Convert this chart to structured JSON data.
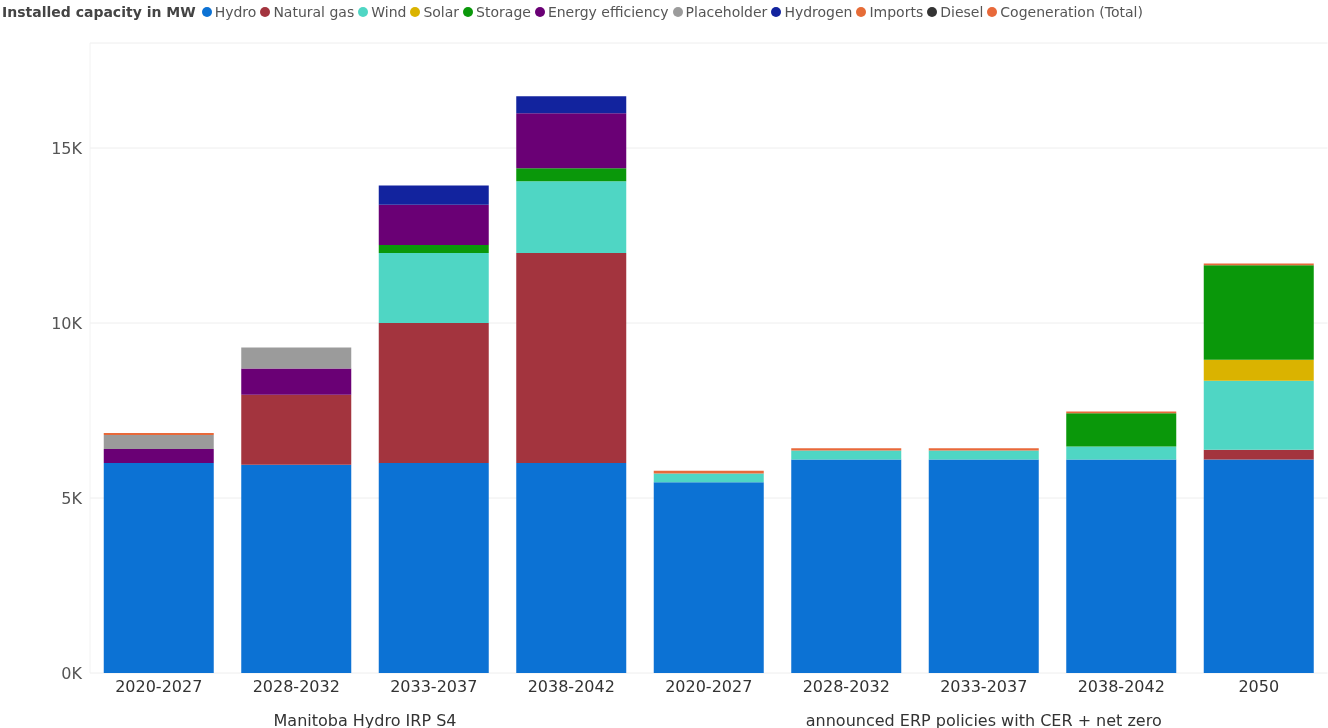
{
  "chart_data": [
    {
      "type": "bar",
      "stacked": true,
      "legend_title": "Installed capacity in MW",
      "legend": "top",
      "grid": "y",
      "xlabel": "Manitoba Hydro IRP S4",
      "categories": [
        "2020-2027",
        "2028-2032",
        "2033-2037",
        "2038-2042"
      ],
      "ylim": [
        0,
        18000
      ],
      "yticks": [
        {
          "value": 0,
          "label": "0K"
        },
        {
          "value": 5000,
          "label": "5K"
        },
        {
          "value": 10000,
          "label": "10K"
        },
        {
          "value": 15000,
          "label": "15K"
        }
      ],
      "series": [
        {
          "name": "Hydro",
          "color": "#0c72d4",
          "values": [
            6000,
            5950,
            6000,
            6000
          ]
        },
        {
          "name": "Natural gas",
          "color": "#a3343e",
          "values": [
            null,
            2000,
            4000,
            6000
          ]
        },
        {
          "name": "Wind",
          "color": "#4fd6c4",
          "values": [
            null,
            null,
            2000,
            2050
          ]
        },
        {
          "name": "Solar",
          "color": "#dab300",
          "values": [
            null,
            null,
            null,
            null
          ]
        },
        {
          "name": "Storage",
          "color": "#0a980a",
          "values": [
            null,
            null,
            230,
            370
          ]
        },
        {
          "name": "Energy efficiency",
          "color": "#6a0075",
          "values": [
            400,
            750,
            1150,
            1570
          ]
        },
        {
          "name": "Placeholder",
          "color": "#9b9b9b",
          "values": [
            400,
            600,
            null,
            null
          ]
        },
        {
          "name": "Hydrogen",
          "color": "#12239e",
          "values": [
            null,
            null,
            550,
            490
          ]
        },
        {
          "name": "Imports",
          "color": "#e66c37",
          "values": [
            null,
            null,
            null,
            null
          ]
        },
        {
          "name": "Diesel",
          "color": "#333333",
          "values": [
            null,
            null,
            null,
            null
          ]
        },
        {
          "name": "Cogeneration (Total)",
          "color": "#e8693a",
          "values": [
            60,
            null,
            null,
            null
          ]
        }
      ]
    },
    {
      "type": "bar",
      "stacked": true,
      "legend": false,
      "grid": "y",
      "tick_labels": "x",
      "xlabel": "announced ERP policies with CER + net zero",
      "categories": [
        "2020-2027",
        "2028-2032",
        "2033-2037",
        "2038-2042",
        "2050"
      ],
      "ylim": [
        0,
        18000
      ],
      "yticks": [
        0,
        5000,
        10000,
        15000
      ],
      "series": [
        {
          "color": "#0c72d4",
          "values": [
            5450,
            6100,
            6100,
            6100,
            6100
          ]
        },
        {
          "color": "#a3343e",
          "values": [
            null,
            null,
            null,
            null,
            280
          ]
        },
        {
          "color": "#4fd6c4",
          "values": [
            250,
            260,
            260,
            370,
            1970
          ]
        },
        {
          "color": "#dab300",
          "values": [
            null,
            null,
            null,
            null,
            600
          ]
        },
        {
          "color": "#0a980a",
          "values": [
            null,
            null,
            null,
            950,
            2700
          ]
        },
        {
          "color": "#e8693a",
          "values": [
            80,
            60,
            60,
            50,
            50
          ]
        }
      ]
    }
  ]
}
